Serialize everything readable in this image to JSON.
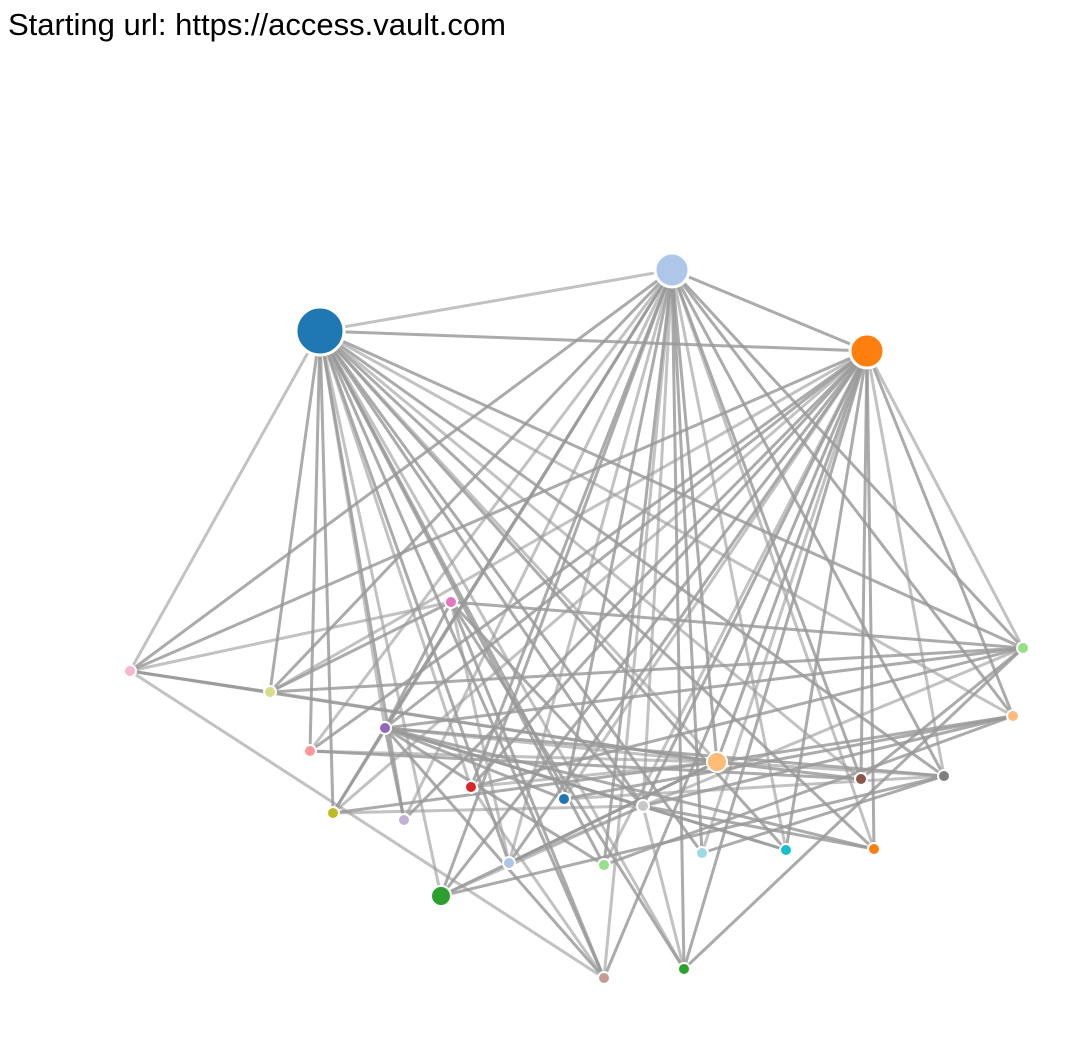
{
  "header": {
    "starting_url": "Starting url: https://access.vault.com"
  },
  "graph": {
    "link_color": "#999999",
    "nodes": [
      {
        "id": "hub-blue",
        "color": "#1f77b4",
        "size": "xlarge"
      },
      {
        "id": "hub-light-blue",
        "color": "#aec7e8",
        "size": "large"
      },
      {
        "id": "hub-orange",
        "color": "#ff7f0e",
        "size": "large"
      },
      {
        "id": "pink-left",
        "color": "#f7b6d2",
        "size": "small"
      },
      {
        "id": "olive-light",
        "color": "#dbdb8d",
        "size": "small"
      },
      {
        "id": "magenta",
        "color": "#e377c2",
        "size": "small"
      },
      {
        "id": "purple",
        "color": "#9467bd",
        "size": "small"
      },
      {
        "id": "salmon",
        "color": "#ff9896",
        "size": "small"
      },
      {
        "id": "olive",
        "color": "#bcbd22",
        "size": "small"
      },
      {
        "id": "lavender",
        "color": "#c5b0d5",
        "size": "small"
      },
      {
        "id": "red",
        "color": "#d62728",
        "size": "small"
      },
      {
        "id": "blue-small",
        "color": "#1f77b4",
        "size": "small"
      },
      {
        "id": "light-blue-small",
        "color": "#aec7e8",
        "size": "small"
      },
      {
        "id": "green-large",
        "color": "#2ca02c",
        "size": "medium"
      },
      {
        "id": "light-green",
        "color": "#98df8a",
        "size": "small"
      },
      {
        "id": "gray-light",
        "color": "#c7c7c7",
        "size": "small"
      },
      {
        "id": "peach",
        "color": "#ffbb78",
        "size": "medium"
      },
      {
        "id": "light-cyan",
        "color": "#9edae5",
        "size": "small"
      },
      {
        "id": "cyan",
        "color": "#17becf",
        "size": "small"
      },
      {
        "id": "brown",
        "color": "#8c564b",
        "size": "small"
      },
      {
        "id": "gray",
        "color": "#7f7f7f",
        "size": "small"
      },
      {
        "id": "orange-small",
        "color": "#ff7f0e",
        "size": "small"
      },
      {
        "id": "peach-right",
        "color": "#ffbb78",
        "size": "small"
      },
      {
        "id": "green-right",
        "color": "#98df8a",
        "size": "small"
      },
      {
        "id": "rose-bottom",
        "color": "#c49c94",
        "size": "small"
      },
      {
        "id": "green-bottom",
        "color": "#2ca02c",
        "size": "small"
      }
    ],
    "links": [
      [
        "hub-blue",
        "hub-light-blue"
      ],
      [
        "hub-blue",
        "hub-orange"
      ],
      [
        "hub-light-blue",
        "hub-orange"
      ],
      [
        "hub-blue",
        "pink-left"
      ],
      [
        "hub-blue",
        "olive-light"
      ],
      [
        "hub-blue",
        "salmon"
      ],
      [
        "hub-blue",
        "purple"
      ],
      [
        "hub-blue",
        "olive"
      ],
      [
        "hub-blue",
        "lavender"
      ],
      [
        "hub-blue",
        "red"
      ],
      [
        "hub-blue",
        "blue-small"
      ],
      [
        "hub-blue",
        "light-blue-small"
      ],
      [
        "hub-blue",
        "green-large"
      ],
      [
        "hub-blue",
        "light-green"
      ],
      [
        "hub-blue",
        "gray-light"
      ],
      [
        "hub-blue",
        "peach"
      ],
      [
        "hub-blue",
        "light-cyan"
      ],
      [
        "hub-blue",
        "cyan"
      ],
      [
        "hub-blue",
        "brown"
      ],
      [
        "hub-blue",
        "gray"
      ],
      [
        "hub-blue",
        "orange-small"
      ],
      [
        "hub-blue",
        "peach-right"
      ],
      [
        "hub-blue",
        "green-right"
      ],
      [
        "hub-blue",
        "rose-bottom"
      ],
      [
        "hub-blue",
        "green-bottom"
      ],
      [
        "hub-light-blue",
        "pink-left"
      ],
      [
        "hub-light-blue",
        "olive-light"
      ],
      [
        "hub-light-blue",
        "salmon"
      ],
      [
        "hub-light-blue",
        "purple"
      ],
      [
        "hub-light-blue",
        "olive"
      ],
      [
        "hub-light-blue",
        "lavender"
      ],
      [
        "hub-light-blue",
        "red"
      ],
      [
        "hub-light-blue",
        "blue-small"
      ],
      [
        "hub-light-blue",
        "light-blue-small"
      ],
      [
        "hub-light-blue",
        "green-large"
      ],
      [
        "hub-light-blue",
        "light-green"
      ],
      [
        "hub-light-blue",
        "gray-light"
      ],
      [
        "hub-light-blue",
        "peach"
      ],
      [
        "hub-light-blue",
        "light-cyan"
      ],
      [
        "hub-light-blue",
        "cyan"
      ],
      [
        "hub-light-blue",
        "brown"
      ],
      [
        "hub-light-blue",
        "gray"
      ],
      [
        "hub-light-blue",
        "orange-small"
      ],
      [
        "hub-light-blue",
        "peach-right"
      ],
      [
        "hub-light-blue",
        "green-right"
      ],
      [
        "hub-light-blue",
        "rose-bottom"
      ],
      [
        "hub-light-blue",
        "green-bottom"
      ],
      [
        "hub-orange",
        "pink-left"
      ],
      [
        "hub-orange",
        "olive-light"
      ],
      [
        "hub-orange",
        "salmon"
      ],
      [
        "hub-orange",
        "purple"
      ],
      [
        "hub-orange",
        "olive"
      ],
      [
        "hub-orange",
        "lavender"
      ],
      [
        "hub-orange",
        "red"
      ],
      [
        "hub-orange",
        "blue-small"
      ],
      [
        "hub-orange",
        "light-blue-small"
      ],
      [
        "hub-orange",
        "green-large"
      ],
      [
        "hub-orange",
        "light-green"
      ],
      [
        "hub-orange",
        "gray-light"
      ],
      [
        "hub-orange",
        "peach"
      ],
      [
        "hub-orange",
        "light-cyan"
      ],
      [
        "hub-orange",
        "cyan"
      ],
      [
        "hub-orange",
        "brown"
      ],
      [
        "hub-orange",
        "gray"
      ],
      [
        "hub-orange",
        "orange-small"
      ],
      [
        "hub-orange",
        "peach-right"
      ],
      [
        "hub-orange",
        "green-right"
      ],
      [
        "hub-orange",
        "rose-bottom"
      ],
      [
        "hub-orange",
        "green-bottom"
      ],
      [
        "pink-left",
        "magenta"
      ],
      [
        "pink-left",
        "olive-light"
      ],
      [
        "pink-left",
        "peach"
      ],
      [
        "pink-left",
        "rose-bottom"
      ],
      [
        "olive-light",
        "magenta"
      ],
      [
        "olive-light",
        "green-right"
      ],
      [
        "olive-light",
        "peach"
      ],
      [
        "magenta",
        "green-right"
      ],
      [
        "magenta",
        "purple"
      ],
      [
        "magenta",
        "light-blue-small"
      ],
      [
        "magenta",
        "gray-light"
      ],
      [
        "purple",
        "green-right"
      ],
      [
        "purple",
        "peach"
      ],
      [
        "purple",
        "gray"
      ],
      [
        "purple",
        "orange-small"
      ],
      [
        "purple",
        "gray-light"
      ],
      [
        "purple",
        "cyan"
      ],
      [
        "purple",
        "rose-bottom"
      ],
      [
        "salmon",
        "peach"
      ],
      [
        "salmon",
        "brown"
      ],
      [
        "olive",
        "peach"
      ],
      [
        "olive",
        "gray-light"
      ],
      [
        "olive",
        "purple"
      ],
      [
        "lavender",
        "purple"
      ],
      [
        "red",
        "peach"
      ],
      [
        "red",
        "green-right"
      ],
      [
        "blue-small",
        "peach-right"
      ],
      [
        "blue-small",
        "gray"
      ],
      [
        "blue-small",
        "purple"
      ],
      [
        "light-blue-small",
        "peach"
      ],
      [
        "light-blue-small",
        "gray-light"
      ],
      [
        "green-large",
        "peach"
      ],
      [
        "green-large",
        "gray"
      ],
      [
        "green-large",
        "gray-light"
      ],
      [
        "light-green",
        "peach-right"
      ],
      [
        "light-green",
        "purple"
      ],
      [
        "gray-light",
        "green-right"
      ],
      [
        "gray-light",
        "peach-right"
      ],
      [
        "peach",
        "peach-right"
      ],
      [
        "peach",
        "gray"
      ],
      [
        "peach",
        "brown"
      ],
      [
        "light-cyan",
        "gray"
      ],
      [
        "cyan",
        "purple"
      ],
      [
        "brown",
        "green-right"
      ],
      [
        "rose-bottom",
        "magenta"
      ],
      [
        "rose-bottom",
        "red"
      ],
      [
        "green-bottom",
        "magenta"
      ],
      [
        "green-bottom",
        "green-right"
      ],
      [
        "green-bottom",
        "gray-light"
      ],
      [
        "orange-small",
        "gray-light"
      ]
    ]
  }
}
